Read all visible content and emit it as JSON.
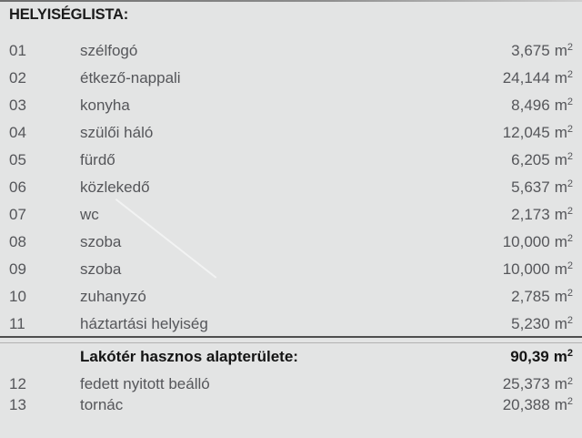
{
  "title": "HELYISÉGLISTA:",
  "unit": {
    "base": "m",
    "exp": "2"
  },
  "rows": [
    {
      "num": "01",
      "name": "szélfogó",
      "area": "3,675"
    },
    {
      "num": "02",
      "name": "étkező-nappali",
      "area": "24,144"
    },
    {
      "num": "03",
      "name": "konyha",
      "area": "8,496"
    },
    {
      "num": "04",
      "name": "szülői háló",
      "area": "12,045"
    },
    {
      "num": "05",
      "name": "fürdő",
      "area": "6,205"
    },
    {
      "num": "06",
      "name": "közlekedő",
      "area": "5,637"
    },
    {
      "num": "07",
      "name": "wc",
      "area": "2,173"
    },
    {
      "num": "08",
      "name": "szoba",
      "area": "10,000"
    },
    {
      "num": "09",
      "name": "szoba",
      "area": "10,000"
    },
    {
      "num": "10",
      "name": "zuhanyzó",
      "area": "2,785"
    },
    {
      "num": "11",
      "name": "háztartási helyiség",
      "area": "5,230"
    }
  ],
  "total": {
    "label": "Lakótér hasznos alapterülete:",
    "area": "90,39"
  },
  "extra_rows": [
    {
      "num": "12",
      "name": "fedett nyitott beálló",
      "area": "25,373"
    },
    {
      "num": "13",
      "name": "tornác",
      "area": "20,388"
    }
  ],
  "colors": {
    "background": "#e3e4e4",
    "text": "#55565a",
    "heading": "#1b1b1b",
    "rule_dark": "#4e4e4e",
    "rule_light": "#b2b2b2"
  }
}
